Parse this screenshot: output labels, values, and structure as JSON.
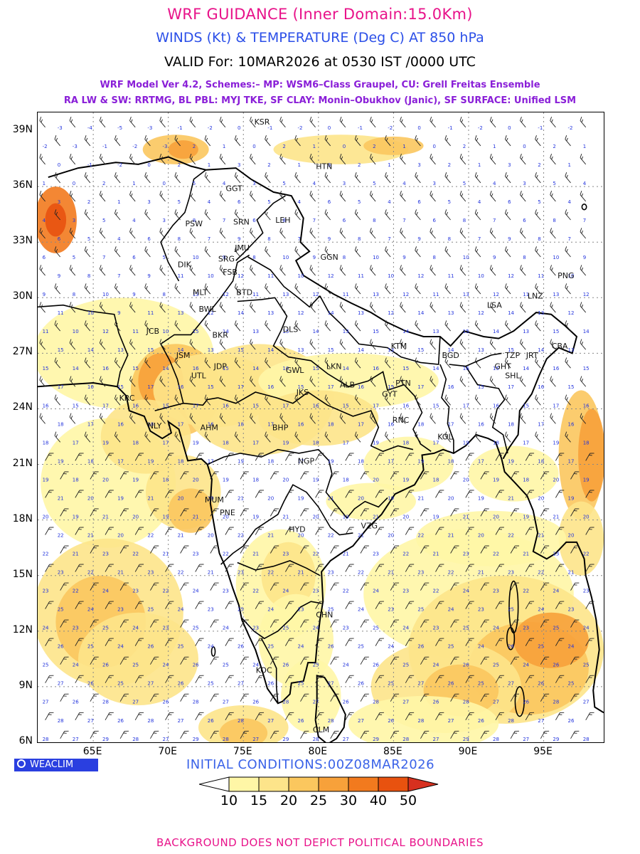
{
  "titles": {
    "line1": "WRF GUIDANCE (Inner Domain:15.0Km)",
    "line2": "WINDS (Kt) & TEMPERATURE (Deg C) AT 850 hPa",
    "line3": "VALID For: 10MAR2026 at 0530 IST /0000 UTC",
    "line4": "WRF Model Ver 4.2, Schemes:– MP: WSM6–Class Graupel, CU: Grell Freitas Ensemble",
    "line5": "RA LW & SW: RRTMG, BL PBL: MYJ TKE, SF CLAY: Monin–Obukhov (Janic), SF SURFACE: Unified LSM"
  },
  "axes": {
    "lat_labels": [
      "39N",
      "36N",
      "33N",
      "30N",
      "27N",
      "24N",
      "21N",
      "18N",
      "15N",
      "12N",
      "9N",
      "6N"
    ],
    "lon_labels": [
      "65E",
      "70E",
      "75E",
      "80E",
      "85E",
      "90E",
      "95E"
    ]
  },
  "cities": [
    {
      "code": "KSR",
      "lon": 76.2,
      "lat": 39.5
    },
    {
      "code": "HTN",
      "lon": 80.3,
      "lat": 37.1
    },
    {
      "code": "GGT",
      "lon": 74.3,
      "lat": 35.9
    },
    {
      "code": "PSW",
      "lon": 71.6,
      "lat": 34.0
    },
    {
      "code": "SRN",
      "lon": 74.8,
      "lat": 34.1
    },
    {
      "code": "LEH",
      "lon": 77.6,
      "lat": 34.2
    },
    {
      "code": "JMU",
      "lon": 74.9,
      "lat": 32.7
    },
    {
      "code": "SRG",
      "lon": 73.8,
      "lat": 32.1
    },
    {
      "code": "GGN",
      "lon": 80.6,
      "lat": 32.2
    },
    {
      "code": "DIK",
      "lon": 71.1,
      "lat": 31.8
    },
    {
      "code": "FSB",
      "lon": 74.1,
      "lat": 31.4
    },
    {
      "code": "PNG",
      "lon": 96.4,
      "lat": 31.2
    },
    {
      "code": "MLT",
      "lon": 72.1,
      "lat": 30.3
    },
    {
      "code": "BTD",
      "lon": 75.0,
      "lat": 30.3
    },
    {
      "code": "LNZ",
      "lon": 94.4,
      "lat": 30.1
    },
    {
      "code": "LSA",
      "lon": 91.7,
      "lat": 29.6
    },
    {
      "code": "BWL",
      "lon": 72.5,
      "lat": 29.4
    },
    {
      "code": "DLS",
      "lon": 78.1,
      "lat": 28.3
    },
    {
      "code": "JCB",
      "lon": 69.0,
      "lat": 28.2
    },
    {
      "code": "BKR",
      "lon": 73.4,
      "lat": 28.0
    },
    {
      "code": "KTM",
      "lon": 85.3,
      "lat": 27.4
    },
    {
      "code": "CBA",
      "lon": 96.0,
      "lat": 27.4
    },
    {
      "code": "JSM",
      "lon": 71.0,
      "lat": 26.9
    },
    {
      "code": "BGD",
      "lon": 88.7,
      "lat": 26.9
    },
    {
      "code": "TZP",
      "lon": 92.9,
      "lat": 26.9
    },
    {
      "code": "JRT",
      "lon": 94.3,
      "lat": 26.9
    },
    {
      "code": "JDP",
      "lon": 73.5,
      "lat": 26.3
    },
    {
      "code": "LKN",
      "lon": 81.0,
      "lat": 26.3
    },
    {
      "code": "GHT",
      "lon": 92.2,
      "lat": 26.3
    },
    {
      "code": "GWL",
      "lon": 78.3,
      "lat": 26.1
    },
    {
      "code": "SHL",
      "lon": 92.9,
      "lat": 25.8
    },
    {
      "code": "UTL",
      "lon": 72.0,
      "lat": 25.8
    },
    {
      "code": "PTN",
      "lon": 85.6,
      "lat": 25.4
    },
    {
      "code": "ALB",
      "lon": 81.9,
      "lat": 25.3
    },
    {
      "code": "KRC",
      "lon": 67.2,
      "lat": 24.6
    },
    {
      "code": "JKS",
      "lon": 79.0,
      "lat": 24.9
    },
    {
      "code": "GYT",
      "lon": 84.7,
      "lat": 24.8
    },
    {
      "code": "AHM",
      "lon": 72.6,
      "lat": 23.0
    },
    {
      "code": "BHP",
      "lon": 77.4,
      "lat": 23.0
    },
    {
      "code": "NLY",
      "lon": 69.1,
      "lat": 23.1
    },
    {
      "code": "RNC",
      "lon": 85.4,
      "lat": 23.4
    },
    {
      "code": "KOL",
      "lon": 88.4,
      "lat": 22.5
    },
    {
      "code": "NGP",
      "lon": 79.1,
      "lat": 21.2
    },
    {
      "code": "MUM",
      "lon": 72.9,
      "lat": 19.1
    },
    {
      "code": "PNE",
      "lon": 73.9,
      "lat": 18.4
    },
    {
      "code": "VZG",
      "lon": 83.3,
      "lat": 17.7
    },
    {
      "code": "HYD",
      "lon": 78.5,
      "lat": 17.5
    },
    {
      "code": "CHN",
      "lon": 80.3,
      "lat": 12.9
    },
    {
      "code": "KOC",
      "lon": 76.3,
      "lat": 9.9
    },
    {
      "code": "CLM",
      "lon": 80.1,
      "lat": 6.7
    }
  ],
  "branding": {
    "logo_text": "WEACLIM"
  },
  "initial_conditions": "INITIAL CONDITIONS:00Z08MAR2026",
  "colorbar": {
    "labels": [
      "10",
      "15",
      "20",
      "25",
      "30",
      "40",
      "50"
    ],
    "colors": [
      "#ffffff",
      "#fff6a6",
      "#fde48a",
      "#fbc75e",
      "#f7a13a",
      "#f27a1e",
      "#e8520f",
      "#d7301f"
    ]
  },
  "footer": "BACKGROUND DOES NOT DEPICT POLITICAL BOUNDARIES"
}
